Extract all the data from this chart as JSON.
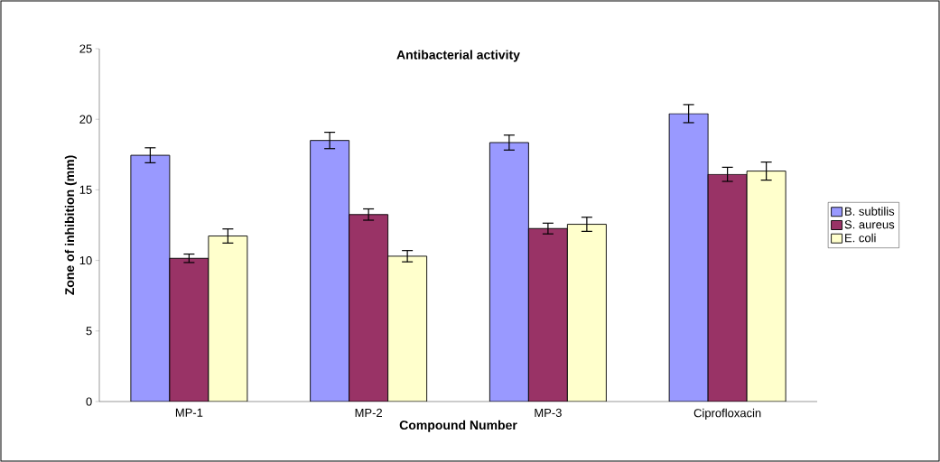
{
  "chart_data": {
    "type": "bar",
    "title": "Antibacterial activity",
    "xlabel": "Compound Number",
    "ylabel": "Zone of inhibition (mm)",
    "categories": [
      "MP-1",
      "MP-2",
      "MP-3",
      "Ciprofloxacin"
    ],
    "series": [
      {
        "name": "B. subtilis",
        "color": "#9999ff",
        "values": [
          17.45,
          18.5,
          18.35,
          20.4
        ],
        "errors": [
          0.53,
          0.58,
          0.53,
          0.64
        ]
      },
      {
        "name": "S. aureus",
        "color": "#993366",
        "values": [
          10.15,
          13.25,
          12.26,
          16.1
        ],
        "errors": [
          0.3,
          0.4,
          0.38,
          0.5
        ]
      },
      {
        "name": "E. coli",
        "color": "#ffffcc",
        "values": [
          11.73,
          10.3,
          12.56,
          16.33
        ],
        "errors": [
          0.5,
          0.4,
          0.5,
          0.64
        ]
      }
    ],
    "ylim": [
      0,
      25
    ],
    "yticks": [
      0,
      5,
      10,
      15,
      20,
      25
    ],
    "grid": false,
    "legend": "right"
  }
}
